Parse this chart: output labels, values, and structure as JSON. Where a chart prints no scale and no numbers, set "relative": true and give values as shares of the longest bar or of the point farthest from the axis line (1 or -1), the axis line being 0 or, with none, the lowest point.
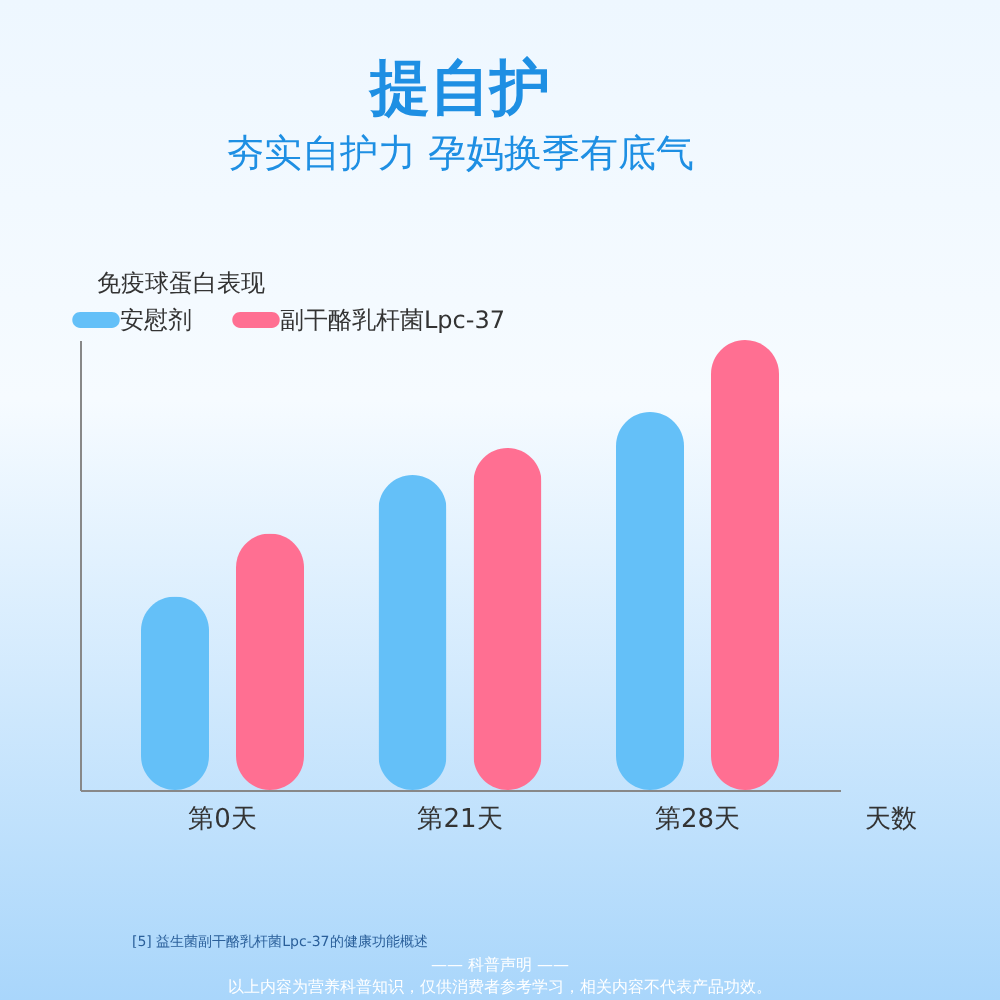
{
  "chart_data": {
    "type": "bar",
    "title": "提自护",
    "subtitle": "夯实自护力 孕妈换季有底气",
    "ylabel": "免疫球蛋白表现",
    "xlabel": "天数",
    "categories": [
      "第0天",
      "第21天",
      "第28天"
    ],
    "relative": true,
    "series": [
      {
        "name": "安慰剂",
        "color": "#64c0f8",
        "values": [
          0.43,
          0.7,
          0.84
        ]
      },
      {
        "name": "副干酪乳杆菌Lpc-37",
        "color": "#ff6f92",
        "values": [
          0.57,
          0.76,
          1
        ]
      }
    ],
    "legend": "top",
    "grid": false,
    "annotations": [
      "[5] 益生菌副干酪乳杆菌Lpc-37的健康功能概述",
      "—— 科普声明 ——",
      "以上内容为营养科普知识，仅供消费者参考学习，相关内容不代表产品功效。"
    ]
  }
}
